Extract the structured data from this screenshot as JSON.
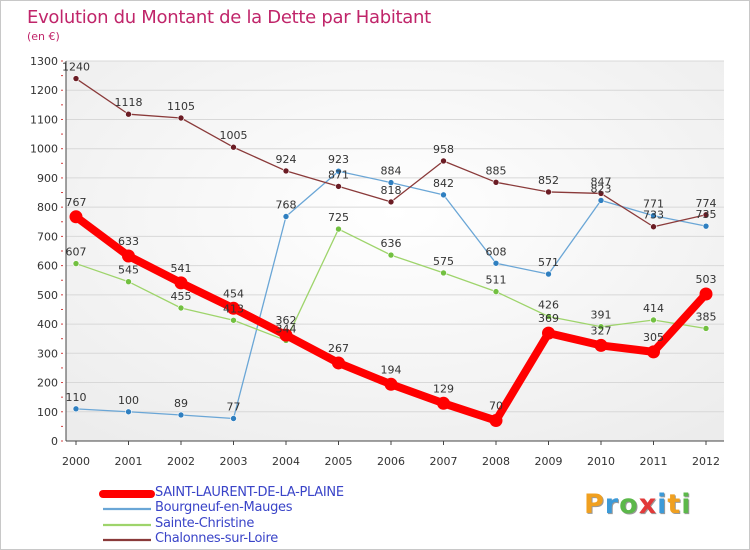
{
  "title": "Evolution du Montant de la Dette par Habitant",
  "unit_note": "(en €)",
  "brand": {
    "letters": [
      "P",
      "r",
      "o",
      "x",
      "i",
      "t",
      "i"
    ],
    "colors": [
      "#f0a020",
      "#3c9ad8",
      "#5cb84a",
      "#e23a3a",
      "#3c9ad8",
      "#f0a020",
      "#5cb84a"
    ]
  },
  "chart_data": {
    "type": "line",
    "title": "Evolution du Montant de la Dette par Habitant",
    "ylabel": "(en €)",
    "xlabel": "",
    "x": [
      "2000",
      "2001",
      "2002",
      "2003",
      "2004",
      "2005",
      "2006",
      "2007",
      "2008",
      "2009",
      "2010",
      "2011",
      "2012"
    ],
    "ylim": [
      0,
      1300
    ],
    "yticks": [
      0,
      100,
      200,
      300,
      400,
      500,
      600,
      700,
      800,
      900,
      1000,
      1100,
      1200,
      1300
    ],
    "grid": "horizontal",
    "legend_position": "bottom-left",
    "series": [
      {
        "name": "SAINT-LAURENT-DE-LA-PLAINE",
        "color": "#ff0000",
        "marker": "#ff0000",
        "width": 8,
        "values": [
          767,
          633,
          541,
          454,
          362,
          267,
          194,
          129,
          70,
          369,
          327,
          305,
          503
        ]
      },
      {
        "name": "Bourgneuf-en-Mauges",
        "color": "#6aa6d6",
        "marker": "#2f7fc0",
        "width": 1.3,
        "values": [
          110,
          100,
          89,
          77,
          768,
          923,
          884,
          842,
          608,
          571,
          823,
          771,
          735
        ]
      },
      {
        "name": "Sainte-Christine",
        "color": "#9ed46b",
        "marker": "#72c040",
        "width": 1.3,
        "values": [
          607,
          545,
          455,
          413,
          344,
          725,
          636,
          575,
          511,
          426,
          391,
          414,
          385
        ]
      },
      {
        "name": "Chalonnes-sur-Loire",
        "color": "#8a3a3a",
        "marker": "#6b1c24",
        "width": 1.3,
        "values": [
          1240,
          1118,
          1105,
          1005,
          924,
          871,
          818,
          958,
          885,
          852,
          847,
          733,
          774
        ]
      }
    ]
  }
}
